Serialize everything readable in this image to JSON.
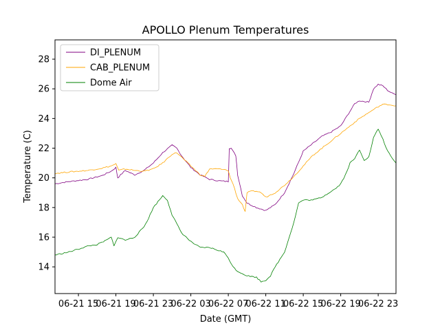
{
  "chart_data": {
    "type": "line",
    "title": "APOLLO Plenum Temperatures",
    "xlabel": "Date (GMT)",
    "ylabel": "Temperature (C)",
    "xlim": [
      12.5,
      48.9
    ],
    "ylim": [
      12.2,
      29.3
    ],
    "yticks": [
      14,
      16,
      18,
      20,
      22,
      24,
      26,
      28
    ],
    "xticks": [
      {
        "value": 15,
        "label": "06-21 15"
      },
      {
        "value": 19,
        "label": "06-21 19"
      },
      {
        "value": 23,
        "label": "06-21 23"
      },
      {
        "value": 27,
        "label": "06-22 03"
      },
      {
        "value": 31,
        "label": "06-22 07"
      },
      {
        "value": 35,
        "label": "06-22 11"
      },
      {
        "value": 39,
        "label": "06-22 15"
      },
      {
        "value": 43,
        "label": "06-22 19"
      },
      {
        "value": 47,
        "label": "06-22 23"
      }
    ],
    "legend_position": "upper-left",
    "series": [
      {
        "name": "DI_PLENUM",
        "color": "#800080",
        "x": [
          12.5,
          14,
          16,
          17.5,
          18.5,
          19.0,
          19.2,
          19.5,
          20,
          21,
          22,
          23,
          24,
          25,
          25.5,
          26,
          27,
          28,
          29,
          30,
          31,
          31.1,
          31.3,
          31.8,
          32,
          32.5,
          33,
          34,
          35,
          36,
          37,
          38,
          39,
          40,
          41,
          42,
          43,
          44,
          44.5,
          45,
          46,
          46.5,
          47,
          47.5,
          48,
          48.5,
          48.9
        ],
        "y": [
          19.6,
          19.75,
          19.9,
          20.15,
          20.45,
          20.7,
          20.0,
          20.2,
          20.5,
          20.2,
          20.5,
          21.0,
          21.7,
          22.2,
          22.0,
          21.5,
          20.7,
          20.2,
          19.9,
          19.8,
          19.75,
          22.0,
          22.0,
          21.5,
          20.2,
          18.8,
          18.3,
          18.0,
          17.8,
          18.2,
          19.0,
          20.3,
          21.8,
          22.3,
          22.8,
          23.1,
          23.5,
          24.5,
          25.0,
          25.2,
          25.1,
          26.0,
          26.3,
          26.2,
          25.9,
          25.7,
          25.6
        ]
      },
      {
        "name": "CAB_PLENUM",
        "color": "#ffa500",
        "x": [
          12.5,
          14,
          16,
          17.5,
          18.5,
          19.0,
          19.3,
          20,
          21,
          22,
          23,
          24,
          25,
          25.5,
          26,
          27,
          28,
          28.5,
          29,
          30,
          31,
          31.2,
          31.5,
          32,
          32.5,
          32.8,
          33,
          33.5,
          34,
          34.5,
          35,
          36,
          37,
          38,
          39,
          40,
          41,
          42,
          43,
          44,
          45,
          46,
          47,
          47.5,
          48,
          48.5,
          48.9
        ],
        "y": [
          20.3,
          20.4,
          20.5,
          20.65,
          20.8,
          20.95,
          20.5,
          20.6,
          20.5,
          20.45,
          20.6,
          21.0,
          21.6,
          21.7,
          21.4,
          20.8,
          20.2,
          20.1,
          20.6,
          20.6,
          20.5,
          20.0,
          19.6,
          18.6,
          18.2,
          17.7,
          19.0,
          19.1,
          19.1,
          19.0,
          18.7,
          19.0,
          19.5,
          20.1,
          20.8,
          21.5,
          22.0,
          22.5,
          23.0,
          23.5,
          24.0,
          24.4,
          24.8,
          24.95,
          24.95,
          24.9,
          24.85
        ]
      },
      {
        "name": "Dome Air",
        "color": "#008000",
        "x": [
          12.5,
          14,
          15,
          16,
          17,
          18,
          18.5,
          18.8,
          19.2,
          20,
          21,
          22,
          22.5,
          23,
          24,
          24.5,
          25,
          26,
          27,
          28,
          29,
          30,
          30.5,
          31,
          31.5,
          32,
          33,
          34,
          34.5,
          35,
          35.5,
          36,
          37,
          37.5,
          38,
          38.5,
          39,
          40,
          41,
          42,
          42.5,
          43,
          43.5,
          44,
          44.5,
          45,
          45.5,
          46,
          46.5,
          47,
          47.5,
          48,
          48.5,
          48.9
        ],
        "y": [
          14.8,
          15.0,
          15.2,
          15.4,
          15.5,
          15.8,
          16.0,
          15.4,
          16.0,
          15.8,
          16.0,
          16.7,
          17.3,
          18.0,
          18.8,
          18.5,
          17.5,
          16.3,
          15.7,
          15.3,
          15.3,
          15.1,
          15.0,
          14.6,
          14.0,
          13.7,
          13.4,
          13.3,
          13.0,
          13.1,
          13.4,
          14.0,
          15.0,
          16.0,
          17.0,
          18.3,
          18.5,
          18.5,
          18.7,
          19.1,
          19.3,
          19.6,
          20.2,
          21.0,
          21.3,
          21.9,
          21.2,
          21.4,
          22.7,
          23.3,
          22.6,
          21.8,
          21.3,
          21.0
        ]
      }
    ]
  }
}
